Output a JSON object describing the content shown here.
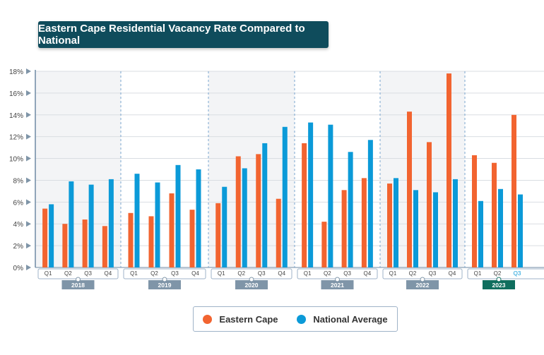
{
  "colors": {
    "title_bg": "#0f4c5c",
    "eastern_cape": "#f26430",
    "national": "#0b9ad8",
    "band_shaded": "#f3f4f6",
    "year_label": "#7f95a8",
    "year_label_active": "#0f6e5e"
  },
  "chart_data": {
    "type": "bar",
    "title": "Eastern Cape Residential Vacancy Rate Compared to National",
    "ylim": [
      0,
      18
    ],
    "yticks": [
      "0%",
      "2%",
      "4%",
      "6%",
      "8%",
      "10%",
      "12%",
      "14%",
      "16%",
      "18%"
    ],
    "grid": true,
    "legend_position": "bottom",
    "groups": [
      {
        "year": "2018",
        "quarters": [
          "Q1",
          "Q2",
          "Q3",
          "Q4"
        ]
      },
      {
        "year": "2019",
        "quarters": [
          "Q1",
          "Q2",
          "Q3",
          "Q4"
        ]
      },
      {
        "year": "2020",
        "quarters": [
          "Q1",
          "Q2",
          "Q3",
          "Q4"
        ]
      },
      {
        "year": "2021",
        "quarters": [
          "Q1",
          "Q2",
          "Q3",
          "Q4"
        ]
      },
      {
        "year": "2022",
        "quarters": [
          "Q1",
          "Q2",
          "Q3",
          "Q4"
        ]
      },
      {
        "year": "2023",
        "quarters": [
          "Q1",
          "Q2",
          "Q3"
        ],
        "active": true
      }
    ],
    "series": [
      {
        "name": "Eastern Cape",
        "color": "#f26430",
        "values": [
          5.4,
          4.0,
          4.4,
          3.8,
          5.0,
          4.7,
          6.8,
          5.3,
          5.9,
          10.2,
          10.4,
          6.3,
          11.4,
          4.2,
          7.1,
          8.2,
          7.7,
          14.3,
          11.5,
          17.8,
          10.3,
          9.6,
          14.0
        ]
      },
      {
        "name": "National Average",
        "color": "#0b9ad8",
        "values": [
          5.8,
          7.9,
          7.6,
          8.1,
          8.6,
          7.8,
          9.4,
          9.0,
          7.4,
          9.1,
          11.4,
          12.9,
          13.3,
          13.1,
          10.6,
          11.7,
          8.2,
          7.1,
          6.9,
          8.1,
          6.1,
          7.2,
          6.7
        ]
      }
    ]
  },
  "legend": {
    "items": [
      {
        "label": "Eastern Cape",
        "color": "#f26430"
      },
      {
        "label": "National Average",
        "color": "#0b9ad8"
      }
    ]
  }
}
